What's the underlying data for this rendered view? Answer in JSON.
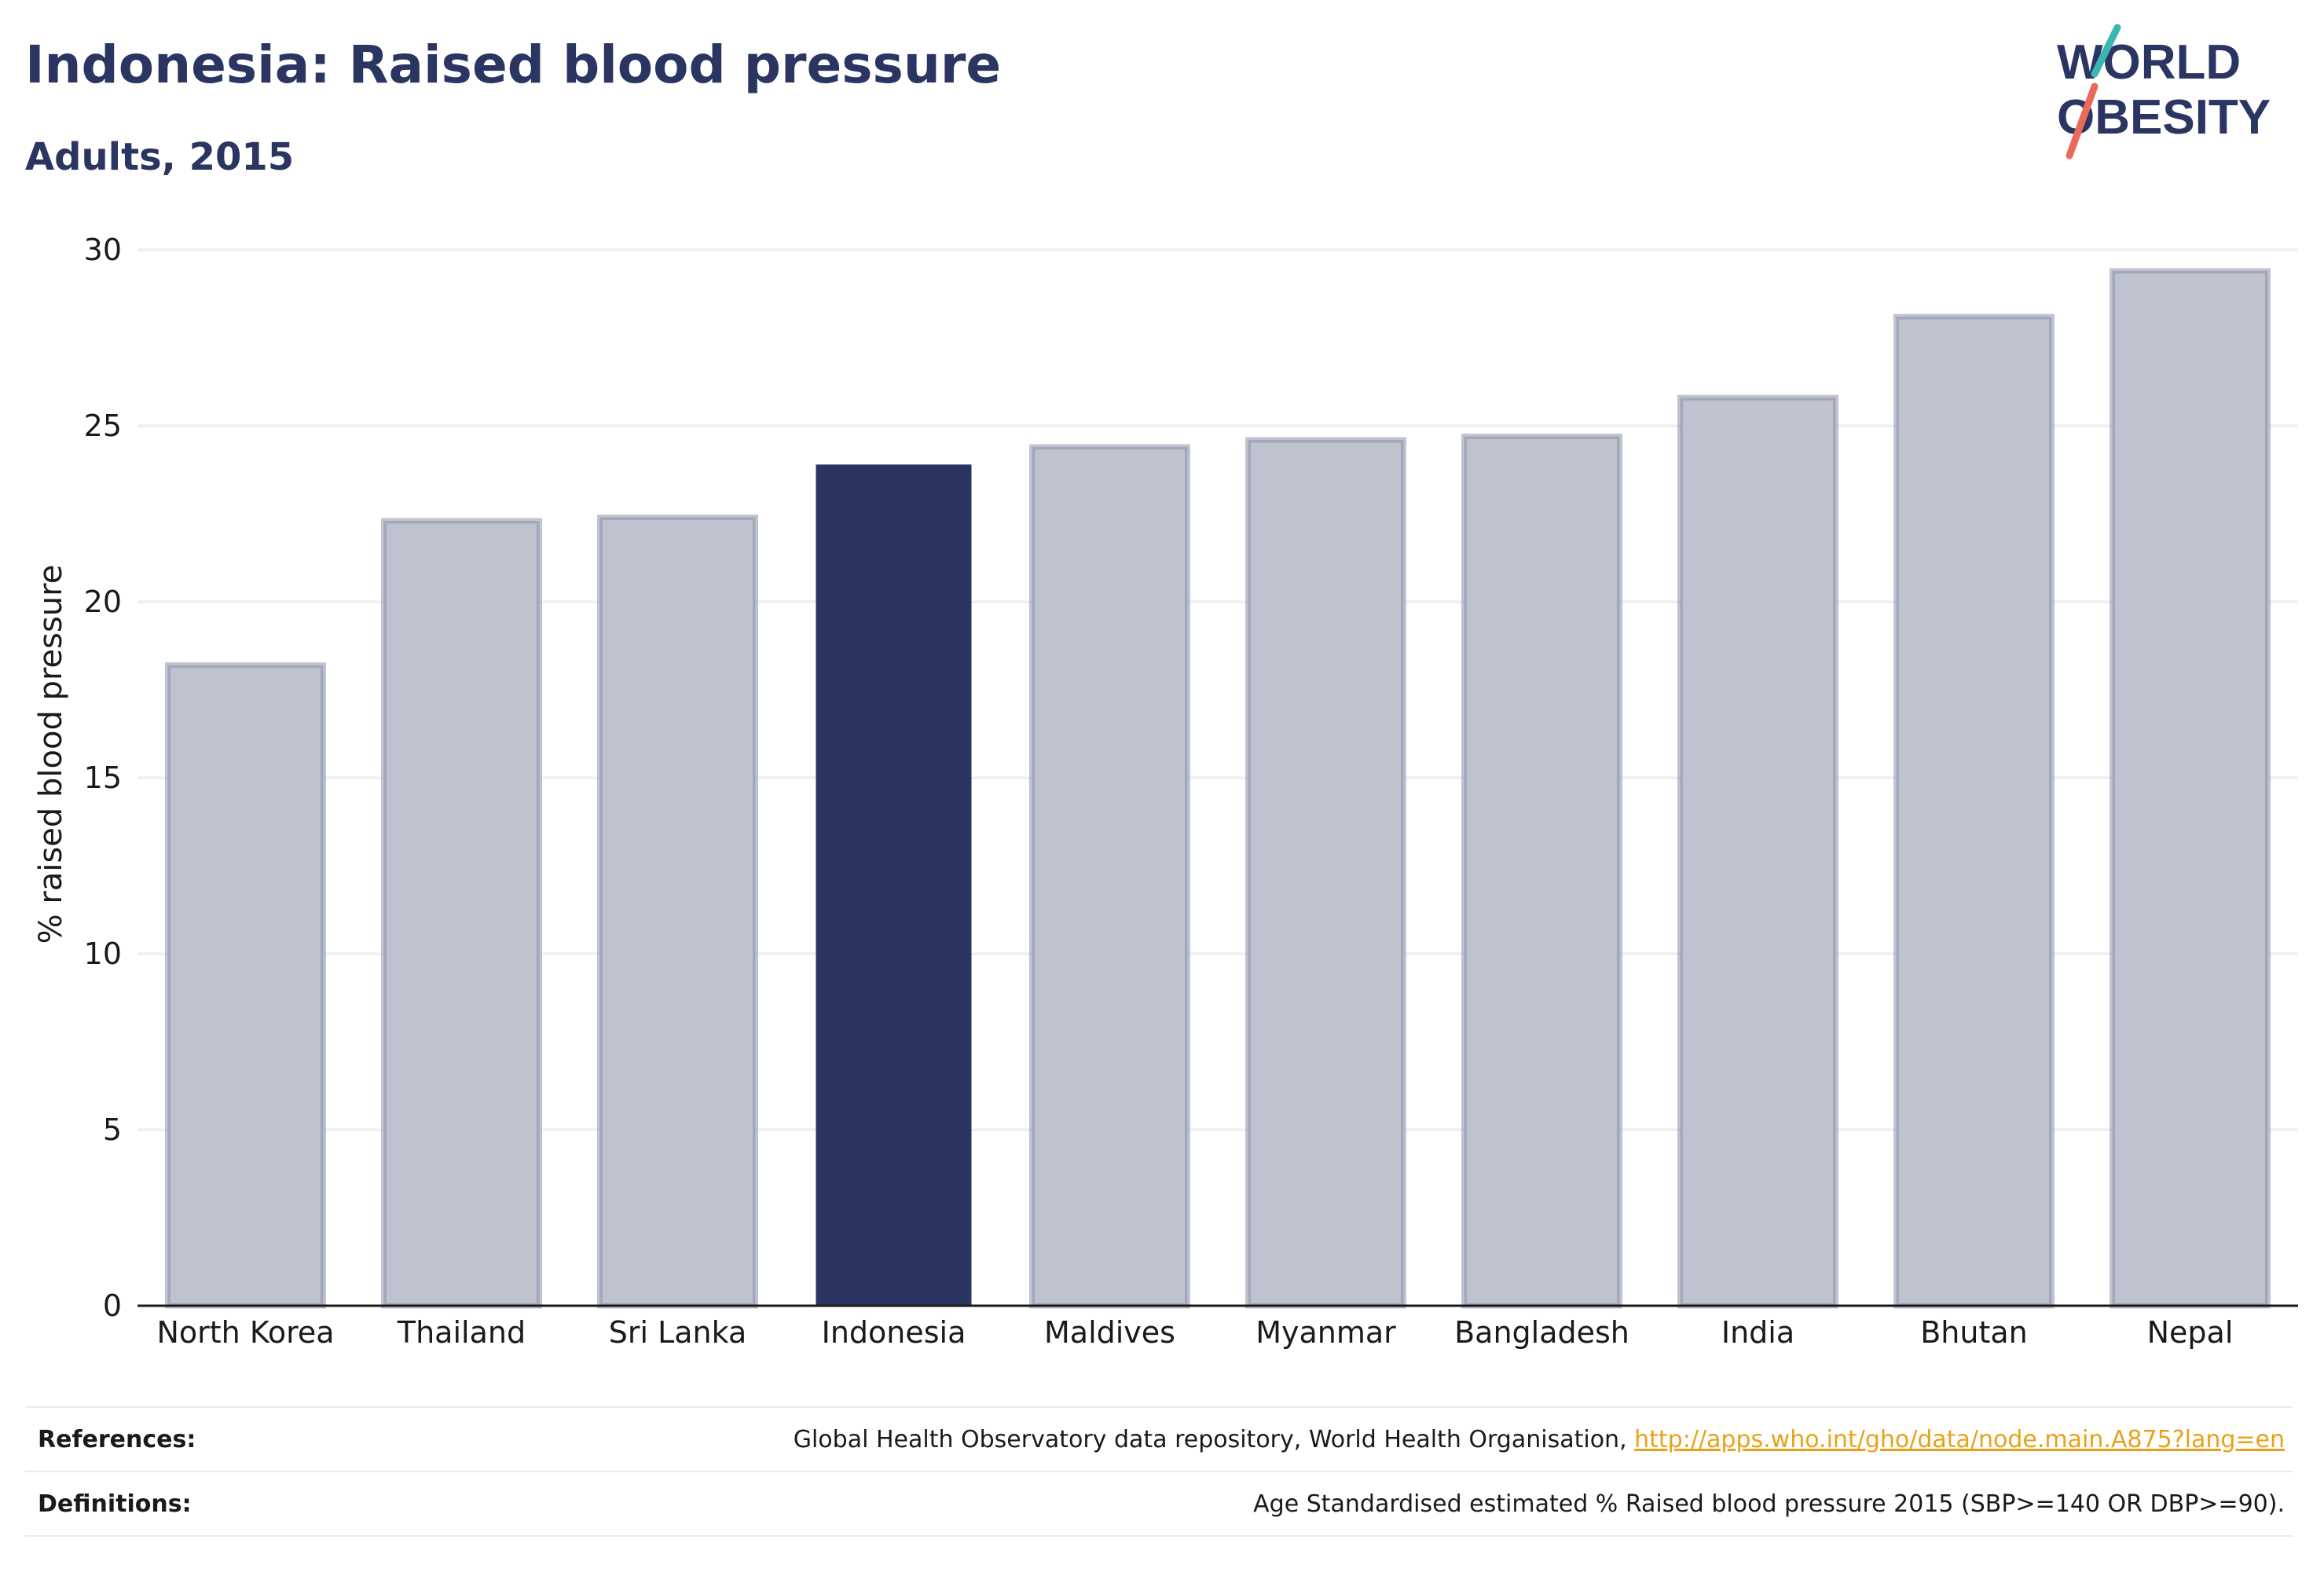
{
  "title": "Indonesia: Raised blood pressure",
  "subtitle": "Adults, 2015",
  "logo": {
    "line1": "WORLD",
    "line2": "OBESITY"
  },
  "footer": {
    "references_label": "References:",
    "references_text": "Global Health Observatory data repository, World Health Organisation, ",
    "references_link": "http://apps.who.int/gho/data/node.main.A875?lang=en",
    "definitions_label": "Definitions:",
    "definitions_text": "Age Standardised estimated % Raised blood pressure 2015 (SBP>=140 OR DBP>=90)."
  },
  "colors": {
    "highlight": "#2a3562",
    "bar_fill": "#bfc2cf",
    "bar_stroke": "#8d92a9",
    "grid": "#ebedf3",
    "axis": "#1a1a1a",
    "logo_teal": "#3bb6b0",
    "logo_coral": "#e86a5a"
  },
  "chart_data": {
    "type": "bar",
    "categories": [
      "North Korea",
      "Thailand",
      "Sri Lanka",
      "Indonesia",
      "Maldives",
      "Myanmar",
      "Bangladesh",
      "India",
      "Bhutan",
      "Nepal"
    ],
    "values": [
      18.2,
      22.3,
      22.4,
      23.9,
      24.4,
      24.6,
      24.7,
      25.8,
      28.1,
      29.4
    ],
    "highlight": "Indonesia",
    "title": "Indonesia: Raised blood pressure",
    "subtitle": "Adults, 2015",
    "xlabel": "",
    "ylabel": "% raised blood pressure",
    "ylim": [
      0,
      30
    ],
    "yticks": [
      0,
      5,
      10,
      15,
      20,
      25,
      30
    ],
    "grid": true,
    "legend": "none"
  }
}
